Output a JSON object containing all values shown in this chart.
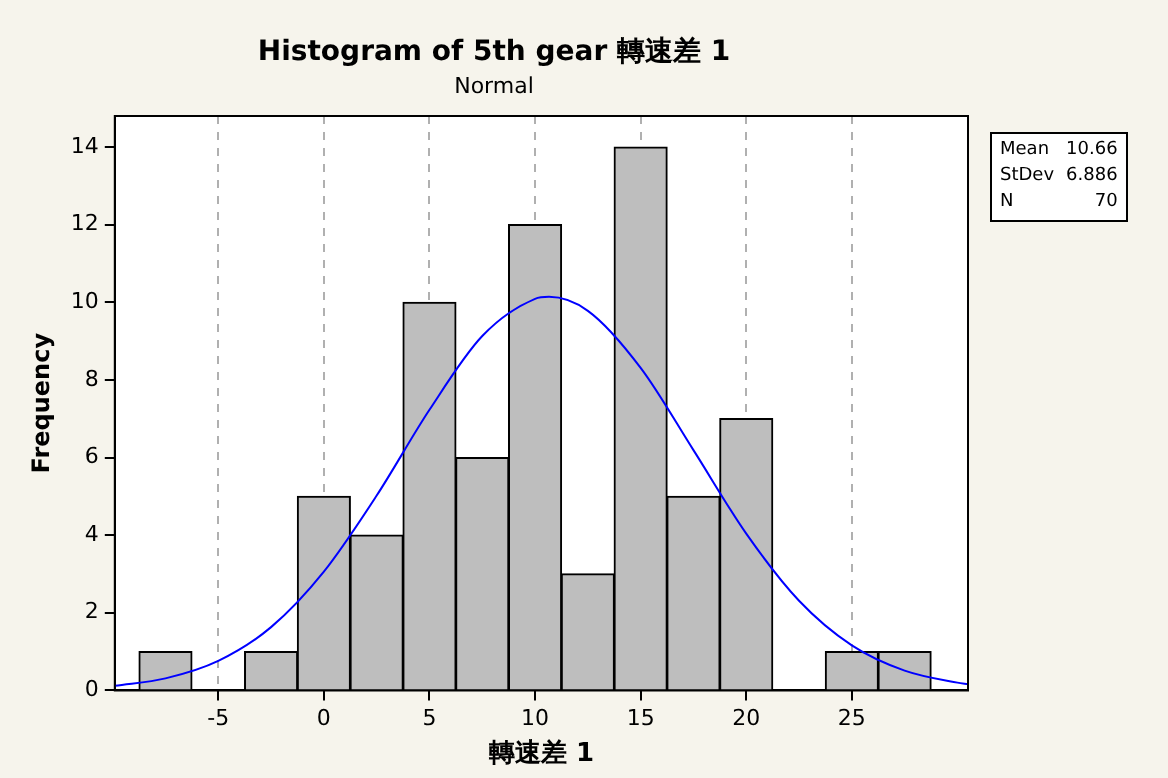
{
  "chart_data": {
    "type": "histogram",
    "title": "Histogram of 5th gear 轉速差 1",
    "subtitle": "Normal",
    "xlabel": "轉速差 1",
    "ylabel": "Frequency",
    "bins": [
      -8.75,
      -6.25,
      -3.75,
      -1.25,
      1.25,
      3.75,
      6.25,
      8.75,
      11.25,
      13.75,
      16.25,
      18.75,
      21.25,
      23.75,
      26.25,
      28.75
    ],
    "values": [
      1,
      0,
      1,
      5,
      4,
      10,
      6,
      12,
      3,
      14,
      5,
      7,
      0,
      1,
      1
    ],
    "color": "#bebebe",
    "series": [
      {
        "type": "line",
        "color": "#0000ff",
        "x": [
          -9.9,
          -7.5,
          -5,
          -2.5,
          0,
          2.5,
          5,
          7.5,
          10,
          10.66,
          12.5,
          15,
          17.5,
          20,
          22.5,
          25,
          27.5,
          30,
          30.5
        ],
        "values": [
          0.12,
          0.31,
          0.76,
          1.63,
          3.06,
          5.02,
          7.23,
          9.13,
          10.09,
          10.14,
          9.78,
          8.31,
          6.19,
          4.04,
          2.31,
          1.16,
          0.51,
          0.2,
          0.16
        ]
      }
    ],
    "marker": "none",
    "xlim": [
      -9.9,
      30.5
    ],
    "xticks": [
      -5,
      0,
      5,
      10,
      15,
      20,
      25
    ],
    "ylim": [
      0,
      14.8
    ],
    "yticks": [
      0,
      2,
      4,
      6,
      8,
      10,
      12,
      14
    ],
    "grid": "x",
    "annotations": [
      "Mean 10.66",
      "StDev 6.886",
      "N 70"
    ]
  }
}
